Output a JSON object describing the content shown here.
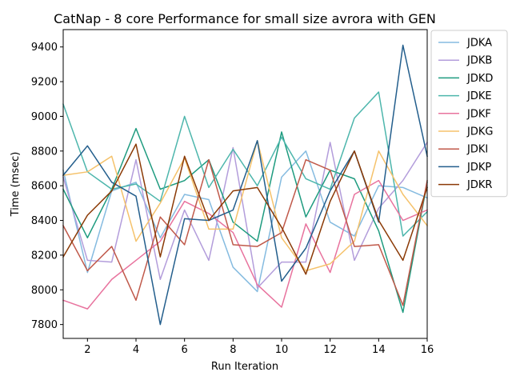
{
  "chart_data": {
    "type": "line",
    "title": "CatNap - 8 core Performance for small size avrora with GEN",
    "xlabel": "Run Iteration",
    "ylabel": "Time (msec)",
    "xlim": [
      1,
      16
    ],
    "ylim": [
      7720,
      9500
    ],
    "xticks": [
      2,
      4,
      6,
      8,
      10,
      12,
      14,
      16
    ],
    "yticks": [
      7800,
      8000,
      8200,
      8400,
      8600,
      8800,
      9000,
      9200,
      9400
    ],
    "grid": false,
    "legend_position": "outside-right",
    "x": [
      1,
      2,
      3,
      4,
      5,
      6,
      7,
      8,
      9,
      10,
      11,
      12,
      13,
      14,
      15,
      16
    ],
    "series": [
      {
        "name": "JDKA",
        "color": "#85bbe0",
        "values": [
          8690,
          8100,
          8570,
          8620,
          8300,
          8550,
          8520,
          8130,
          7990,
          8650,
          8800,
          8390,
          8310,
          8600,
          8590,
          8530
        ]
      },
      {
        "name": "JDKB",
        "color": "#b39ddb",
        "values": [
          8650,
          8170,
          8160,
          8750,
          8060,
          8460,
          8170,
          8820,
          8010,
          8160,
          8160,
          8850,
          8170,
          8470,
          8630,
          8850
        ]
      },
      {
        "name": "JDKD",
        "color": "#1e9b7f",
        "values": [
          8580,
          8300,
          8580,
          8930,
          8580,
          8630,
          8750,
          8390,
          8280,
          8910,
          8420,
          8690,
          8640,
          8340,
          7870,
          8620
        ]
      },
      {
        "name": "JDKE",
        "color": "#4db6ac",
        "values": [
          9070,
          8680,
          8580,
          8610,
          8510,
          9000,
          8590,
          8810,
          8600,
          8880,
          8640,
          8580,
          8990,
          9140,
          8310,
          8450
        ]
      },
      {
        "name": "JDKF",
        "color": "#e8739e",
        "values": [
          7940,
          7890,
          8060,
          8170,
          8280,
          8510,
          8440,
          8330,
          8030,
          7900,
          8380,
          8100,
          8550,
          8630,
          8400,
          8460
        ]
      },
      {
        "name": "JDKG",
        "color": "#f5c26b",
        "values": [
          8660,
          8680,
          8770,
          8280,
          8500,
          8760,
          8350,
          8350,
          8860,
          8300,
          8110,
          8150,
          8280,
          8800,
          8550,
          8370
        ]
      },
      {
        "name": "JDKI",
        "color": "#c0594a",
        "values": [
          8370,
          8110,
          8250,
          7940,
          8420,
          8260,
          8750,
          8260,
          8250,
          8330,
          8750,
          8690,
          8250,
          8260,
          7910,
          8630
        ]
      },
      {
        "name": "JDKP",
        "color": "#235e8c",
        "values": [
          8660,
          8830,
          8620,
          8540,
          7800,
          8410,
          8400,
          8460,
          8860,
          8050,
          8240,
          8570,
          8800,
          8390,
          9410,
          8770
        ]
      },
      {
        "name": "JDKR",
        "color": "#8b3a06",
        "values": [
          8190,
          8430,
          8570,
          8840,
          8190,
          8770,
          8400,
          8570,
          8590,
          8360,
          8090,
          8510,
          8800,
          8400,
          8170,
          8590
        ]
      }
    ]
  }
}
